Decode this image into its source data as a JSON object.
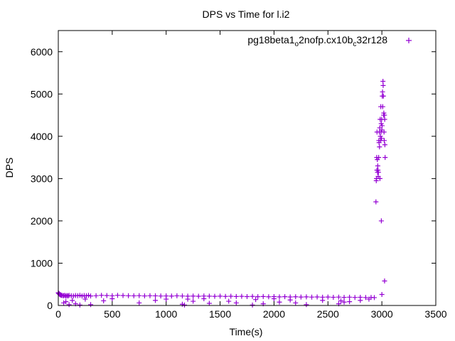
{
  "chart_data": {
    "type": "scatter",
    "title": "DPS vs Time for l.i2",
    "xlabel": "Time(s)",
    "ylabel": "DPS",
    "xlim": [
      0,
      3500
    ],
    "ylim": [
      0,
      6500
    ],
    "xticks": [
      "0",
      "500",
      "1000",
      "1500",
      "2000",
      "2500",
      "3000",
      "3500"
    ],
    "yticks": [
      "0",
      "1000",
      "2000",
      "3000",
      "4000",
      "5000",
      "6000"
    ],
    "grid": false,
    "legend_position": "top-right",
    "legend": {
      "parts": [
        {
          "text": "pg18beta1",
          "sub": false
        },
        {
          "text": "o",
          "sub": true
        },
        {
          "text": "2nofp.cx10b",
          "sub": false
        },
        {
          "text": "c",
          "sub": true
        },
        {
          "text": "32r128",
          "sub": false
        }
      ]
    },
    "series": [
      {
        "color": "#9400d3",
        "marker": "plus",
        "points": [
          [
            0,
            300
          ],
          [
            3,
            290
          ],
          [
            6,
            280
          ],
          [
            10,
            270
          ],
          [
            15,
            260
          ],
          [
            20,
            250
          ],
          [
            25,
            245
          ],
          [
            30,
            240
          ],
          [
            40,
            235
          ],
          [
            50,
            230
          ],
          [
            60,
            240
          ],
          [
            70,
            220
          ],
          [
            80,
            235
          ],
          [
            90,
            225
          ],
          [
            100,
            240
          ],
          [
            120,
            230
          ],
          [
            140,
            225
          ],
          [
            160,
            235
          ],
          [
            180,
            230
          ],
          [
            200,
            240
          ],
          [
            220,
            225
          ],
          [
            240,
            235
          ],
          [
            260,
            230
          ],
          [
            280,
            240
          ],
          [
            300,
            225
          ],
          [
            350,
            230
          ],
          [
            400,
            240
          ],
          [
            450,
            235
          ],
          [
            500,
            230
          ],
          [
            550,
            240
          ],
          [
            600,
            235
          ],
          [
            650,
            230
          ],
          [
            700,
            228
          ],
          [
            750,
            232
          ],
          [
            800,
            226
          ],
          [
            850,
            230
          ],
          [
            900,
            228
          ],
          [
            950,
            224
          ],
          [
            1000,
            226
          ],
          [
            1050,
            222
          ],
          [
            1100,
            228
          ],
          [
            1150,
            224
          ],
          [
            1200,
            220
          ],
          [
            1250,
            222
          ],
          [
            1300,
            218
          ],
          [
            1350,
            224
          ],
          [
            1400,
            220
          ],
          [
            1450,
            216
          ],
          [
            1500,
            220
          ],
          [
            1550,
            214
          ],
          [
            1600,
            218
          ],
          [
            1650,
            212
          ],
          [
            1700,
            216
          ],
          [
            1750,
            210
          ],
          [
            1800,
            214
          ],
          [
            1850,
            208
          ],
          [
            1900,
            212
          ],
          [
            1950,
            206
          ],
          [
            2000,
            210
          ],
          [
            2050,
            204
          ],
          [
            2100,
            208
          ],
          [
            2150,
            202
          ],
          [
            2200,
            206
          ],
          [
            2250,
            200
          ],
          [
            2300,
            204
          ],
          [
            2350,
            198
          ],
          [
            2400,
            202
          ],
          [
            2450,
            196
          ],
          [
            2500,
            200
          ],
          [
            2550,
            194
          ],
          [
            2600,
            198
          ],
          [
            2650,
            192
          ],
          [
            2700,
            196
          ],
          [
            2750,
            190
          ],
          [
            2800,
            194
          ],
          [
            2850,
            188
          ],
          [
            2900,
            192
          ],
          [
            2930,
            186
          ],
          [
            50,
            60
          ],
          [
            70,
            90
          ],
          [
            100,
            20
          ],
          [
            130,
            120
          ],
          [
            160,
            40
          ],
          [
            200,
            10
          ],
          [
            250,
            150
          ],
          [
            300,
            20
          ],
          [
            420,
            110
          ],
          [
            500,
            160
          ],
          [
            750,
            60
          ],
          [
            900,
            120
          ],
          [
            1000,
            150
          ],
          [
            1150,
            30
          ],
          [
            1170,
            10
          ],
          [
            1200,
            150
          ],
          [
            1250,
            100
          ],
          [
            1350,
            160
          ],
          [
            1400,
            50
          ],
          [
            1580,
            100
          ],
          [
            1650,
            60
          ],
          [
            1800,
            10
          ],
          [
            1830,
            140
          ],
          [
            1900,
            40
          ],
          [
            2000,
            160
          ],
          [
            2050,
            80
          ],
          [
            2150,
            130
          ],
          [
            2200,
            60
          ],
          [
            2300,
            20
          ],
          [
            2450,
            120
          ],
          [
            2600,
            40
          ],
          [
            2620,
            110
          ],
          [
            2650,
            80
          ],
          [
            2700,
            90
          ],
          [
            2800,
            120
          ],
          [
            2880,
            150
          ],
          [
            2945,
            2450
          ],
          [
            2948,
            2950
          ],
          [
            2950,
            3000
          ],
          [
            2952,
            3500
          ],
          [
            2954,
            3200
          ],
          [
            2955,
            4100
          ],
          [
            2958,
            3450
          ],
          [
            2960,
            3150
          ],
          [
            2962,
            3300
          ],
          [
            2964,
            3200
          ],
          [
            2966,
            3050
          ],
          [
            2968,
            3150
          ],
          [
            2970,
            3500
          ],
          [
            2972,
            3900
          ],
          [
            2974,
            3850
          ],
          [
            2976,
            4100
          ],
          [
            2978,
            3750
          ],
          [
            2980,
            4200
          ],
          [
            2982,
            3000
          ],
          [
            2984,
            4400
          ],
          [
            2986,
            4000
          ],
          [
            2988,
            3900
          ],
          [
            2990,
            4700
          ],
          [
            2992,
            4100
          ],
          [
            2994,
            4300
          ],
          [
            2996,
            3950
          ],
          [
            2998,
            4400
          ],
          [
            3000,
            4150
          ],
          [
            3002,
            4250
          ],
          [
            3004,
            4950
          ],
          [
            3006,
            5050
          ],
          [
            3008,
            4700
          ],
          [
            3010,
            5300
          ],
          [
            3012,
            5200
          ],
          [
            3014,
            4950
          ],
          [
            3016,
            4500
          ],
          [
            3018,
            4550
          ],
          [
            3020,
            4100
          ],
          [
            3022,
            3900
          ],
          [
            3024,
            4500
          ],
          [
            3026,
            4400
          ],
          [
            3028,
            3800
          ],
          [
            3030,
            3500
          ],
          [
            2995,
            2000
          ],
          [
            3000,
            260
          ],
          [
            3025,
            580
          ]
        ]
      }
    ]
  }
}
